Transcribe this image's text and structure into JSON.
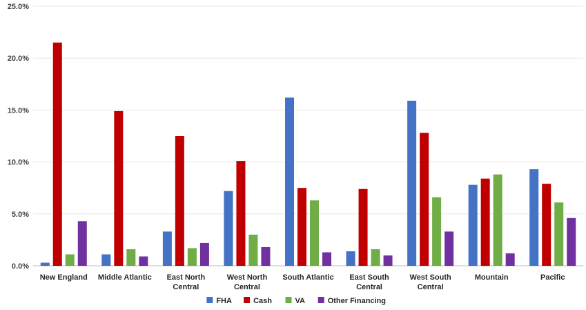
{
  "chart_data": {
    "type": "bar",
    "title": "",
    "xlabel": "",
    "ylabel": "",
    "ylim": [
      0,
      25
    ],
    "yticks": [
      "0.0%",
      "5.0%",
      "10.0%",
      "15.0%",
      "20.0%",
      "25.0%"
    ],
    "grid": true,
    "legend_position": "bottom",
    "categories": [
      [
        "New England"
      ],
      [
        "Middle Atlantic"
      ],
      [
        "East North",
        "Central"
      ],
      [
        "West North",
        "Central"
      ],
      [
        "South Atlantic"
      ],
      [
        "East South",
        "Central"
      ],
      [
        "West South",
        "Central"
      ],
      [
        "Mountain"
      ],
      [
        "Pacific"
      ]
    ],
    "series": [
      {
        "name": "FHA",
        "color": "#4472C4",
        "values": [
          0.3,
          1.1,
          3.3,
          7.2,
          16.2,
          1.4,
          15.9,
          7.8,
          9.3
        ]
      },
      {
        "name": "Cash",
        "color": "#C00000",
        "values": [
          21.5,
          14.9,
          12.5,
          10.1,
          7.5,
          7.4,
          12.8,
          8.4,
          7.9
        ]
      },
      {
        "name": "VA",
        "color": "#70AD47",
        "values": [
          1.1,
          1.6,
          1.7,
          3.0,
          6.3,
          1.6,
          6.6,
          8.8,
          6.1
        ]
      },
      {
        "name": "Other Financing",
        "color": "#7030A0",
        "values": [
          4.3,
          0.9,
          2.2,
          1.8,
          1.3,
          1.0,
          3.3,
          1.2,
          4.6
        ]
      }
    ]
  }
}
